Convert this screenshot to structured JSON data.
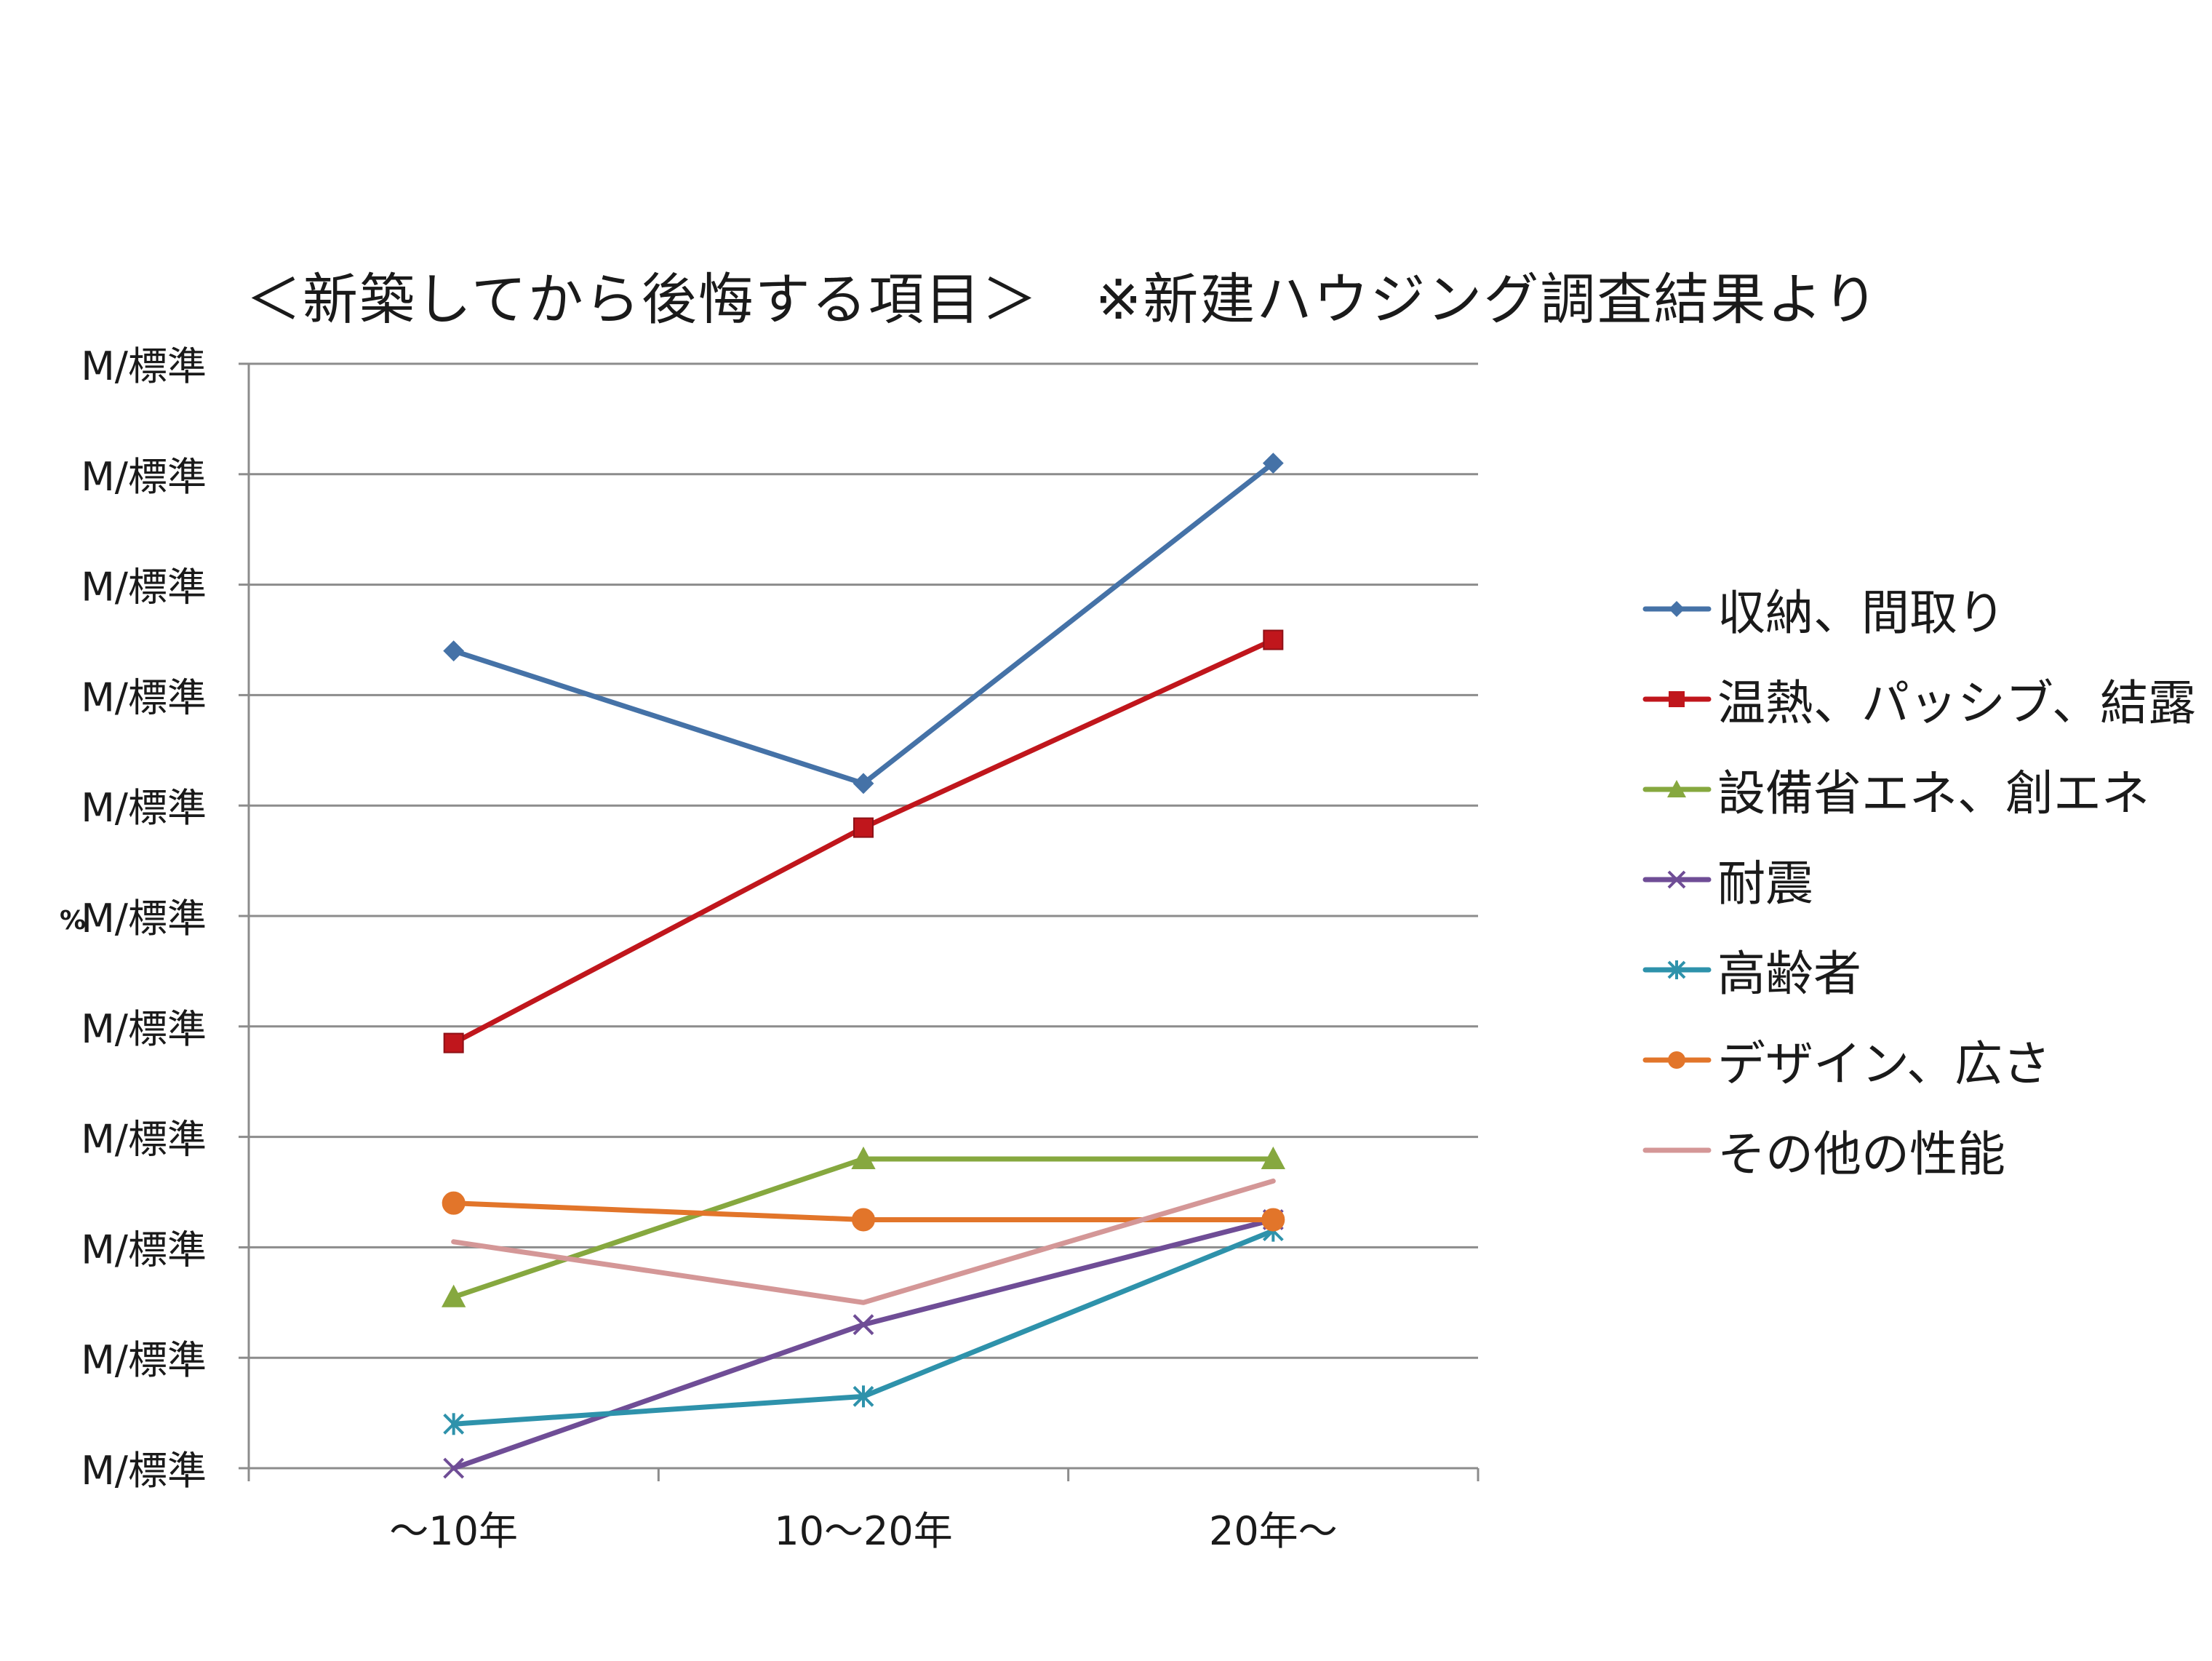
{
  "chart_data": {
    "type": "line",
    "title": "＜新築してから後悔する項目＞　※新建ハウジング調査結果より",
    "categories": [
      "～10年",
      "10～20年",
      "20年～"
    ],
    "y_tick_labels": [
      "M/標準",
      "M/標準",
      "M/標準",
      "M/標準",
      "M/標準",
      "M/標準",
      "M/標準",
      "M/標準",
      "M/標準",
      "M/標準",
      "M/標準"
    ],
    "ylabel": "%",
    "ylim": [
      0,
      10
    ],
    "grid": true,
    "legend_position": "right",
    "series": [
      {
        "name": "収納、間取り",
        "values": [
          7.4,
          6.2,
          9.1
        ],
        "color": "#4572a7",
        "marker": "diamond"
      },
      {
        "name": "温熱、パッシブ、結露",
        "values": [
          3.85,
          5.8,
          7.5
        ],
        "color": "#c0161c",
        "marker": "square"
      },
      {
        "name": "設備省エネ、創エネ",
        "values": [
          1.55,
          2.8,
          2.8
        ],
        "color": "#86a83f",
        "marker": "triangle"
      },
      {
        "name": "耐震",
        "values": [
          0.0,
          1.3,
          2.25
        ],
        "color": "#6f4d96",
        "marker": "x"
      },
      {
        "name": "高齢者",
        "values": [
          0.4,
          0.65,
          2.15
        ],
        "color": "#2e92ab",
        "marker": "star"
      },
      {
        "name": "デザイン、広さ",
        "values": [
          2.4,
          2.25,
          2.25
        ],
        "color": "#e2752a",
        "marker": "circle"
      },
      {
        "name": "その他の性能",
        "values": [
          2.05,
          1.5,
          2.6
        ],
        "color": "#d49797",
        "marker": "none"
      }
    ]
  }
}
